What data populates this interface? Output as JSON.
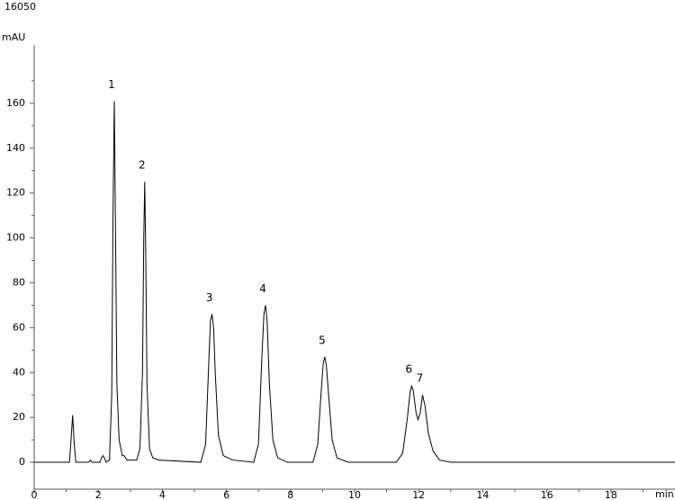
{
  "chart_data": {
    "type": "line",
    "title": "16050",
    "y_label": "mAU",
    "x_label": "min",
    "x": [
      0,
      1.1,
      1.15,
      1.2,
      1.25,
      1.3,
      1.7,
      1.75,
      1.8,
      2.05,
      2.1,
      2.15,
      2.25,
      2.35,
      2.42,
      2.46,
      2.5,
      2.54,
      2.58,
      2.65,
      2.75,
      2.8,
      2.9,
      3.2,
      3.3,
      3.38,
      3.42,
      3.45,
      3.48,
      3.52,
      3.6,
      3.7,
      3.9,
      5.2,
      5.35,
      5.45,
      5.5,
      5.55,
      5.6,
      5.65,
      5.75,
      5.9,
      6.2,
      6.85,
      7.0,
      7.1,
      7.17,
      7.22,
      7.27,
      7.34,
      7.45,
      7.6,
      7.9,
      8.7,
      8.85,
      8.95,
      9.02,
      9.07,
      9.12,
      9.2,
      9.3,
      9.45,
      9.8,
      11.3,
      11.5,
      11.65,
      11.73,
      11.78,
      11.83,
      11.92,
      11.98,
      12.05,
      12.12,
      12.2,
      12.3,
      12.45,
      12.65,
      13.0,
      20
    ],
    "series": [
      {
        "color": "#000000",
        "values": [
          0,
          0,
          10,
          21,
          8,
          0,
          0,
          1,
          0,
          0,
          2,
          3,
          0,
          1,
          30,
          110,
          161,
          100,
          35,
          10,
          3,
          3,
          1,
          1,
          6,
          40,
          100,
          125,
          95,
          35,
          6,
          2,
          1,
          0,
          8,
          45,
          63,
          66,
          60,
          40,
          12,
          3,
          1,
          0,
          8,
          45,
          66,
          70,
          63,
          35,
          10,
          2,
          0,
          0,
          8,
          30,
          44,
          47,
          43,
          28,
          10,
          2,
          0,
          0,
          4,
          20,
          31,
          34,
          32,
          22,
          19,
          22,
          30,
          25,
          13,
          5,
          1,
          0,
          0
        ]
      }
    ],
    "peaks": [
      {
        "label": "1",
        "time": 2.5,
        "height": 161
      },
      {
        "label": "2",
        "time": 3.45,
        "height": 125
      },
      {
        "label": "3",
        "time": 5.55,
        "height": 66
      },
      {
        "label": "4",
        "time": 7.22,
        "height": 70
      },
      {
        "label": "5",
        "time": 9.07,
        "height": 47
      },
      {
        "label": "6",
        "time": 11.78,
        "height": 34
      },
      {
        "label": "7",
        "time": 12.12,
        "height": 30
      }
    ],
    "xlim": [
      0,
      20
    ],
    "xticks": [
      0,
      2,
      4,
      6,
      8,
      10,
      12,
      14,
      16,
      18
    ],
    "xminorticks": [
      1,
      3,
      5,
      7,
      9,
      11,
      13,
      15,
      17,
      19
    ],
    "ylim": [
      -12,
      186
    ],
    "yticks": [
      0,
      20,
      40,
      60,
      80,
      100,
      120,
      140,
      160
    ],
    "yminorticks": [
      10,
      30,
      50,
      70,
      90,
      110,
      130,
      150,
      170
    ]
  }
}
